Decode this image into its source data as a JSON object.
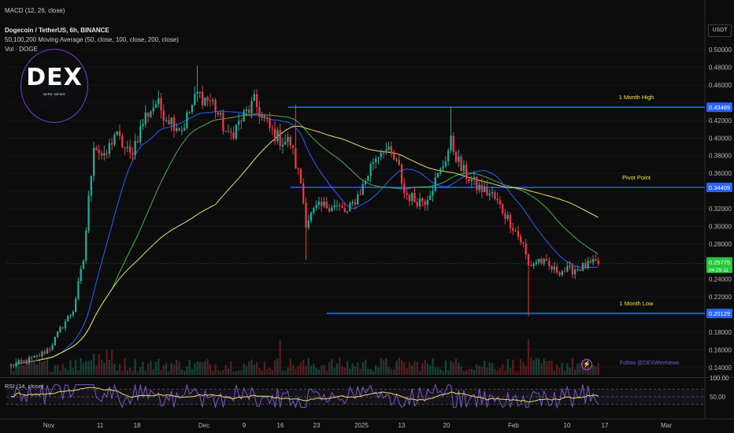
{
  "indicators": {
    "macd": "MACD (12, 26, close)",
    "pair": "Dogecoin / TetherUS, 6h, BINANCE",
    "ma": "50,100,200 Moving Average (50, close, 100, close, 200, close)",
    "vol": "Vol · DOGE",
    "rsi": "RSI (14, close)"
  },
  "currency_button": "USDT",
  "logo": {
    "text": "DEX",
    "subtitle": "WIRE NEWS"
  },
  "follow": "Follow @DEXWireNews",
  "colors": {
    "up": "#22ab94",
    "down": "#f23645",
    "level_line": "#2962ff",
    "level_text": "#f2e64d",
    "ma50": "#2962ff",
    "ma100": "#4caf50",
    "ma200": "#e8e06a",
    "rsi": "#7e57c2",
    "rsi_ma": "#e8e06a",
    "current_price_tag": "#22c93a"
  },
  "chart_data": {
    "type": "candlestick",
    "symbol": "DOGEUSDT",
    "timeframe": "6h",
    "price_axis": {
      "ylim": [
        0.13,
        0.51
      ],
      "ticks": [
        "0.50000",
        "0.48000",
        "0.46000",
        "0.44000",
        "0.42000",
        "0.40000",
        "0.38000",
        "0.36000",
        "0.34000",
        "0.32000",
        "0.30000",
        "0.28000",
        "0.26000",
        "0.24000",
        "0.22000",
        "0.20000",
        "0.18000",
        "0.16000",
        "0.14000"
      ]
    },
    "x_axis_labels": [
      "Nov",
      "11",
      "18",
      "Dec",
      "9",
      "16",
      "23",
      "2025",
      "13",
      "20",
      "Feb",
      "10",
      "17",
      "Mar"
    ],
    "levels": [
      {
        "name": "1 Month High",
        "value": 0.43489,
        "tag": "0.43489"
      },
      {
        "name": "Pivot Point",
        "value": 0.34409,
        "tag": "0.34409"
      },
      {
        "name": "1 Month Low",
        "value": 0.20129,
        "tag": "0.20129"
      }
    ],
    "current_price": {
      "value": 0.25775,
      "tag": "0.25775",
      "countdown": "04:29:11"
    },
    "path_anchors": [
      [
        0,
        0.142
      ],
      [
        10,
        0.152
      ],
      [
        15,
        0.162
      ],
      [
        20,
        0.188
      ],
      [
        24,
        0.205
      ],
      [
        28,
        0.262
      ],
      [
        30,
        0.33
      ],
      [
        32,
        0.395
      ],
      [
        36,
        0.375
      ],
      [
        40,
        0.405
      ],
      [
        46,
        0.38
      ],
      [
        52,
        0.425
      ],
      [
        56,
        0.44
      ],
      [
        60,
        0.425
      ],
      [
        66,
        0.41
      ],
      [
        72,
        0.45
      ],
      [
        78,
        0.44
      ],
      [
        84,
        0.4
      ],
      [
        90,
        0.425
      ],
      [
        94,
        0.44
      ],
      [
        100,
        0.41
      ],
      [
        104,
        0.398
      ],
      [
        108,
        0.395
      ],
      [
        110,
        0.37
      ],
      [
        112,
        0.35
      ],
      [
        114,
        0.305
      ],
      [
        118,
        0.32
      ],
      [
        124,
        0.325
      ],
      [
        130,
        0.315
      ],
      [
        136,
        0.345
      ],
      [
        140,
        0.375
      ],
      [
        144,
        0.39
      ],
      [
        148,
        0.375
      ],
      [
        150,
        0.365
      ],
      [
        152,
        0.338
      ],
      [
        156,
        0.33
      ],
      [
        160,
        0.33
      ],
      [
        166,
        0.362
      ],
      [
        170,
        0.395
      ],
      [
        174,
        0.365
      ],
      [
        180,
        0.345
      ],
      [
        186,
        0.335
      ],
      [
        190,
        0.318
      ],
      [
        194,
        0.3
      ],
      [
        198,
        0.278
      ],
      [
        200,
        0.255
      ],
      [
        204,
        0.262
      ],
      [
        210,
        0.25
      ],
      [
        216,
        0.25
      ],
      [
        222,
        0.255
      ],
      [
        226,
        0.258
      ]
    ],
    "rsi": {
      "ylim": [
        0,
        100
      ],
      "ticks": [
        "100.00",
        "50.00"
      ],
      "band": [
        30,
        70
      ]
    }
  }
}
